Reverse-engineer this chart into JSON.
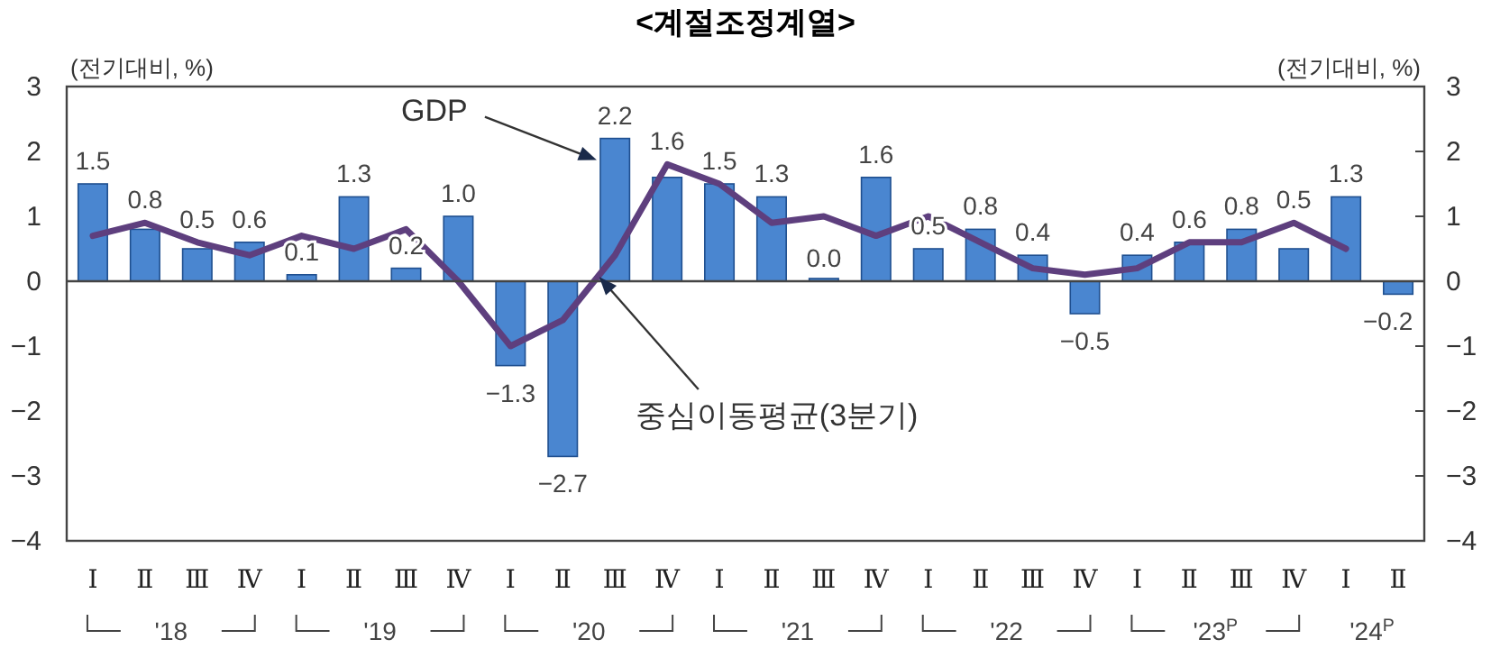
{
  "chart_data": {
    "type": "bar",
    "title": "<계절조정계열>",
    "ylabel": "(전기대비, %)",
    "y2label": "(전기대비, %)",
    "categories": [
      "Ⅰ",
      "Ⅱ",
      "Ⅲ",
      "Ⅳ",
      "Ⅰ",
      "Ⅱ",
      "Ⅲ",
      "Ⅳ",
      "Ⅰ",
      "Ⅱ",
      "Ⅲ",
      "Ⅳ",
      "Ⅰ",
      "Ⅱ",
      "Ⅲ",
      "Ⅳ",
      "Ⅰ",
      "Ⅱ",
      "Ⅲ",
      "Ⅳ",
      "Ⅰ",
      "Ⅱ",
      "Ⅲ",
      "Ⅳ",
      "Ⅰ",
      "Ⅱ"
    ],
    "series": [
      {
        "name": "GDP",
        "color": "#4a86d0",
        "values": [
          1.5,
          0.8,
          0.5,
          0.6,
          0.1,
          1.3,
          0.2,
          1.0,
          -1.3,
          -2.7,
          2.2,
          1.6,
          1.5,
          1.3,
          0.0,
          1.6,
          0.5,
          0.8,
          0.4,
          -0.5,
          0.4,
          0.6,
          0.8,
          0.5,
          1.3,
          -0.2
        ],
        "value_labels": [
          "1.5",
          "0.8",
          "0.5",
          "0.6",
          "0.1",
          "1.3",
          "0.2",
          "1.0",
          "−1.3",
          "−2.7",
          "2.2",
          "1.6",
          "1.5",
          "1.3",
          "0.0",
          "1.6",
          "0.5",
          "0.8",
          "0.4",
          "−0.5",
          "0.4",
          "0.6",
          "0.8",
          "0.5",
          "1.3",
          "−0.2"
        ]
      },
      {
        "name": "중심이동평균(3분기)",
        "type": "line",
        "color": "#5e3f7e",
        "values": [
          0.7,
          0.9,
          0.6,
          0.4,
          0.7,
          0.5,
          0.8,
          0.0,
          -1.0,
          -0.6,
          0.4,
          1.8,
          1.5,
          0.9,
          1.0,
          0.7,
          1.0,
          0.6,
          0.2,
          0.1,
          0.2,
          0.6,
          0.6,
          0.9,
          0.5,
          null
        ]
      }
    ],
    "ylim": [
      -4,
      3
    ],
    "yticks": [
      -4,
      -3,
      -2,
      -1,
      0,
      1,
      2,
      3
    ],
    "y2lim": [
      -4,
      3
    ],
    "y2ticks": [
      -4,
      -3,
      -2,
      -1,
      0,
      1,
      2,
      3
    ],
    "annotations": [
      "'18",
      "'19",
      "'20",
      "'21",
      "'22",
      "'23$^{P}$",
      "'24$^{P}$"
    ]
  }
}
